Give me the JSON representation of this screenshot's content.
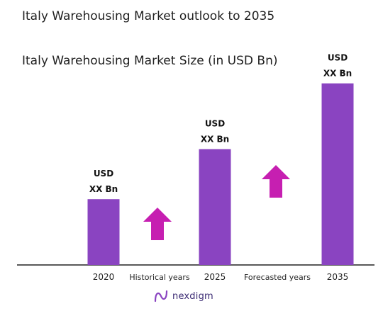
{
  "page": {
    "title": "Italy Warehousing Market outlook to 2035"
  },
  "chart_data": {
    "type": "bar",
    "title": "Italy Warehousing Market Size (in USD Bn)",
    "xlabel": "",
    "ylabel": "",
    "categories": [
      "2020",
      "2025",
      "2035"
    ],
    "values": [
      2.1,
      3.7,
      5.8
    ],
    "data_labels": [
      [
        "USD",
        "XX Bn"
      ],
      [
        "USD",
        "XX Bn"
      ],
      [
        "USD",
        "XX Bn"
      ]
    ],
    "period_labels": [
      "Historical years",
      "Forecasted years"
    ],
    "ylim": [
      0,
      6.2
    ],
    "grid": false,
    "legend": "none",
    "colors": {
      "bar": "#8a44c1",
      "arrow": "#c61fb1",
      "axis": "#222222"
    }
  },
  "footer": {
    "brand": "nexdigm",
    "logo_icon": "nexdigm-logo-icon"
  }
}
